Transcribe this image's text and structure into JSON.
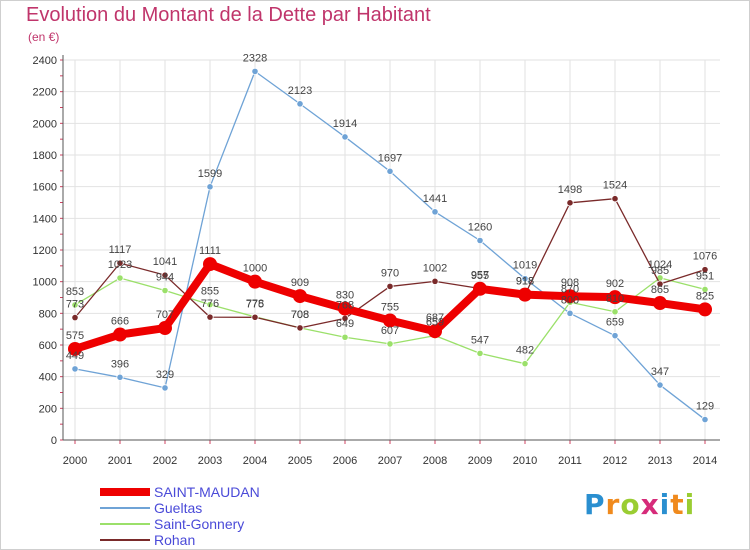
{
  "title": "Evolution du Montant de la Dette par Habitant",
  "subtitle": "(en €)",
  "logo": {
    "text": "Proxiti"
  },
  "chart_data": {
    "type": "line",
    "x": [
      "2000",
      "2001",
      "2002",
      "2003",
      "2004",
      "2005",
      "2006",
      "2007",
      "2008",
      "2009",
      "2010",
      "2011",
      "2012",
      "2013",
      "2014"
    ],
    "ylim": [
      0,
      2400
    ],
    "yticks": [
      "0",
      "200",
      "400",
      "600",
      "800",
      "1000",
      "1200",
      "1400",
      "1600",
      "1800",
      "2000",
      "2200",
      "2400"
    ],
    "grid": true,
    "legend_position": "bottom-left",
    "series": [
      {
        "name": "SAINT-MAUDAN",
        "color": "#ee0000",
        "values": [
          575,
          666,
          707,
          1111,
          1000,
          909,
          830,
          755,
          687,
          955,
          918,
          908,
          902,
          865,
          825
        ]
      },
      {
        "name": "Gueltas",
        "color": "#6fa3d6",
        "values": [
          449,
          396,
          329,
          1599,
          2328,
          2123,
          1914,
          1697,
          1441,
          1260,
          1019,
          800,
          659,
          347,
          129
        ]
      },
      {
        "name": "Saint-Gonnery",
        "color": "#9be06a",
        "values": [
          853,
          1023,
          944,
          855,
          778,
          708,
          649,
          607,
          659,
          547,
          482,
          870,
          810,
          1024,
          951
        ]
      },
      {
        "name": "Rohan",
        "color": "#7a2a2a",
        "values": [
          773,
          1117,
          1041,
          776,
          775,
          708,
          768,
          970,
          1002,
          957,
          918,
          1498,
          1524,
          985,
          1076
        ]
      }
    ]
  }
}
